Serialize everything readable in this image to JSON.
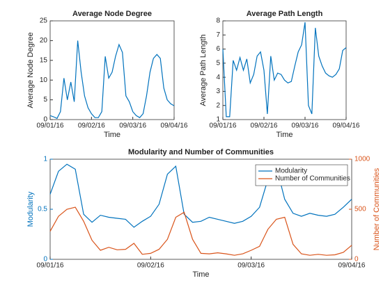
{
  "chart_data": [
    {
      "type": "line",
      "title": "Average Node Degree",
      "xlabel": "Time",
      "ylabel": "Average Node Degree",
      "categories": [
        "09/01/16",
        null,
        null,
        null,
        null,
        null,
        null,
        null,
        null,
        null,
        null,
        null,
        "09/02/16",
        null,
        null,
        null,
        null,
        null,
        null,
        null,
        null,
        null,
        null,
        null,
        "09/03/16",
        null,
        null,
        null,
        null,
        null,
        null,
        null,
        null,
        null,
        null,
        null,
        "09/04/16"
      ],
      "values": [
        1,
        0.7,
        0.3,
        2,
        10.5,
        5,
        9.5,
        4.5,
        20,
        12,
        6,
        3,
        1.5,
        0.5,
        0.5,
        2,
        16,
        10.5,
        12,
        16,
        19,
        17,
        6,
        4.5,
        2,
        1,
        0.5,
        1.5,
        6,
        12,
        15.5,
        16.5,
        15.5,
        8,
        5,
        4,
        3.5
      ],
      "color": "#0072bd",
      "ylim": [
        0,
        25
      ],
      "yticks": [
        0,
        5,
        10,
        15,
        20,
        25
      ]
    },
    {
      "type": "line",
      "title": "Average Path Length",
      "xlabel": "Time",
      "ylabel": "Average Path Length",
      "categories": [
        "09/01/16",
        null,
        null,
        null,
        null,
        null,
        null,
        null,
        null,
        null,
        null,
        null,
        "09/02/16",
        null,
        null,
        null,
        null,
        null,
        null,
        null,
        null,
        null,
        null,
        null,
        "09/03/16",
        null,
        null,
        null,
        null,
        null,
        null,
        null,
        null,
        null,
        null,
        null,
        "09/04/16"
      ],
      "values": [
        6,
        1.2,
        1.2,
        5.2,
        4.5,
        5.4,
        4.5,
        5.3,
        3.6,
        4.2,
        5.5,
        5.8,
        4.5,
        1.4,
        5.5,
        3.8,
        4.3,
        4.2,
        3.8,
        3.6,
        3.7,
        4.8,
        5.8,
        6.3,
        7.9,
        2,
        1.4,
        7.5,
        5.5,
        4.8,
        4.3,
        4.1,
        4,
        4.2,
        4.6,
        5.9,
        6.1
      ],
      "color": "#0072bd",
      "ylim": [
        1,
        8
      ],
      "yticks": [
        1,
        2,
        3,
        4,
        5,
        6,
        7,
        8
      ]
    },
    {
      "type": "line",
      "title": "Modularity and Number of Communities",
      "xlabel": "Time",
      "ylabel": "Modularity",
      "y2label": "Number of Communities",
      "categories": [
        "09/01/16",
        null,
        null,
        null,
        null,
        null,
        null,
        null,
        null,
        null,
        null,
        null,
        "09/02/16",
        null,
        null,
        null,
        null,
        null,
        null,
        null,
        null,
        null,
        null,
        null,
        "09/03/16",
        null,
        null,
        null,
        null,
        null,
        null,
        null,
        null,
        null,
        null,
        null,
        "09/04/16"
      ],
      "series": [
        {
          "name": "Modularity",
          "color": "#0072bd",
          "values": [
            0.65,
            0.88,
            0.95,
            0.9,
            0.45,
            0.37,
            0.44,
            0.42,
            0.41,
            0.4,
            0.32,
            0.38,
            0.43,
            0.55,
            0.85,
            0.93,
            0.45,
            0.37,
            0.38,
            0.42,
            0.4,
            0.38,
            0.36,
            0.38,
            0.43,
            0.52,
            0.8,
            0.93,
            0.6,
            0.46,
            0.43,
            0.46,
            0.44,
            0.43,
            0.45,
            0.52,
            0.6
          ]
        },
        {
          "name": "Number of Communities",
          "color": "#d95319",
          "axis": "y2",
          "values": [
            280,
            430,
            500,
            520,
            380,
            190,
            90,
            120,
            95,
            100,
            160,
            50,
            60,
            100,
            200,
            420,
            470,
            200,
            60,
            55,
            65,
            55,
            40,
            55,
            90,
            130,
            300,
            400,
            420,
            150,
            55,
            40,
            50,
            40,
            45,
            70,
            140
          ]
        }
      ],
      "ylim": [
        0,
        1
      ],
      "yticks": [
        0,
        0.5,
        1
      ],
      "y2lim": [
        0,
        1000
      ],
      "y2ticks": [
        0,
        500,
        1000
      ],
      "legend": "upper right"
    }
  ]
}
